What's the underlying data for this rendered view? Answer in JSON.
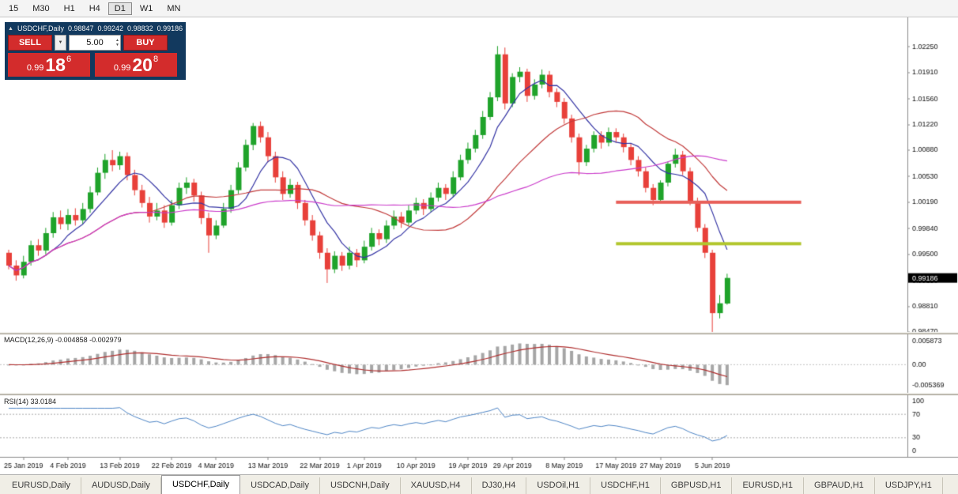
{
  "toolbar": {
    "timeframes": [
      {
        "label": "15",
        "active": false
      },
      {
        "label": "M30",
        "active": false
      },
      {
        "label": "H1",
        "active": false
      },
      {
        "label": "H4",
        "active": false
      },
      {
        "label": "D1",
        "active": true
      },
      {
        "label": "W1",
        "active": false
      },
      {
        "label": "MN",
        "active": false
      }
    ]
  },
  "trade_panel": {
    "header": {
      "symbol": "USDCHF,Daily",
      "open": "0.98847",
      "high": "0.99242",
      "low": "0.98832",
      "close": "0.99186"
    },
    "sell_label": "SELL",
    "buy_label": "BUY",
    "lot_value": "5.00",
    "sell_price": {
      "prefix": "0.99",
      "big": "18",
      "sup": "6"
    },
    "buy_price": {
      "prefix": "0.99",
      "big": "20",
      "sup": "8"
    }
  },
  "indicators": {
    "macd_label": "MACD(12,26,9)",
    "macd_values": "-0.004858 -0.002979",
    "rsi_label": "RSI(14)",
    "rsi_value": "33.0184"
  },
  "chart_data": {
    "type": "candlestick",
    "symbol": "USDCHF",
    "period": "Daily",
    "last_price_label": "0.99186",
    "last_price_value": 0.99186,
    "colors": {
      "up": "#1fa32a",
      "down": "#e8403a",
      "ma_fast": "#3535a5",
      "ma_mid": "#c23b3b",
      "ma_slow": "#cb3ccb",
      "macd_hist": "#a6a6a6",
      "macd_signal": "#b03030",
      "rsi_line": "#4f86c6",
      "resistance": "#e8605a",
      "support": "#b2c62e",
      "badge_bg": "#000000"
    },
    "moving_averages": [
      {
        "period": 7,
        "color": "#3535a5"
      },
      {
        "period": 20,
        "color": "#c23b3b"
      },
      {
        "period": 45,
        "color": "#cb3ccb"
      }
    ],
    "hlines": [
      {
        "name": "resistance-line",
        "value": 1.0019,
        "color": "#e8605a",
        "from_index": 82,
        "to_index": 107
      },
      {
        "name": "support-line",
        "value": 0.9964,
        "color": "#b2c62e",
        "from_index": 82,
        "to_index": 107
      }
    ],
    "price_axis_ticks": [
      {
        "label": "1.02250",
        "value": 1.0225
      },
      {
        "label": "1.01910",
        "value": 1.0191
      },
      {
        "label": "1.01560",
        "value": 1.0156
      },
      {
        "label": "1.01220",
        "value": 1.0122
      },
      {
        "label": "1.00880",
        "value": 1.0088
      },
      {
        "label": "1.00530",
        "value": 1.0053
      },
      {
        "label": "1.00190",
        "value": 1.0019
      },
      {
        "label": "0.99840",
        "value": 0.9984
      },
      {
        "label": "0.99500",
        "value": 0.995
      },
      {
        "label": "0.99150",
        "value": 0.9915
      },
      {
        "label": "0.98810",
        "value": 0.9881
      },
      {
        "label": "0.98470",
        "value": 0.9847
      }
    ],
    "macd_axis_ticks": [
      {
        "label": "0.005873",
        "value": 0.005873
      },
      {
        "label": "0.00",
        "value": 0
      },
      {
        "label": "-0.005369",
        "value": -0.005369
      }
    ],
    "macd_params": [
      12,
      26,
      9
    ],
    "rsi_period": 14,
    "rsi_levels": [
      70,
      30
    ],
    "rsi_axis_ticks": [
      {
        "label": "100",
        "value": 100
      },
      {
        "label": "70",
        "value": 70
      },
      {
        "label": "30",
        "value": 30
      },
      {
        "label": "0",
        "value": 0
      }
    ],
    "x_ticks": [
      {
        "label": "25 Jan 2019",
        "index": 2
      },
      {
        "label": "4 Feb 2019",
        "index": 8
      },
      {
        "label": "13 Feb 2019",
        "index": 15
      },
      {
        "label": "22 Feb 2019",
        "index": 22
      },
      {
        "label": "4 Mar 2019",
        "index": 28
      },
      {
        "label": "13 Mar 2019",
        "index": 35
      },
      {
        "label": "22 Mar 2019",
        "index": 42
      },
      {
        "label": "1 Apr 2019",
        "index": 48
      },
      {
        "label": "10 Apr 2019",
        "index": 55
      },
      {
        "label": "19 Apr 2019",
        "index": 62
      },
      {
        "label": "29 Apr 2019",
        "index": 68
      },
      {
        "label": "8 May 2019",
        "index": 75
      },
      {
        "label": "17 May 2019",
        "index": 82
      },
      {
        "label": "27 May 2019",
        "index": 88
      },
      {
        "label": "5 Jun 2019",
        "index": 95
      }
    ],
    "candles": [
      [
        0.9952,
        0.9956,
        0.993,
        0.9935
      ],
      [
        0.9935,
        0.9942,
        0.9915,
        0.9922
      ],
      [
        0.9922,
        0.9948,
        0.9918,
        0.994
      ],
      [
        0.994,
        0.9968,
        0.9935,
        0.9962
      ],
      [
        0.9962,
        0.997,
        0.9948,
        0.9955
      ],
      [
        0.9955,
        0.9985,
        0.995,
        0.9978
      ],
      [
        0.9978,
        1.0006,
        0.9972,
        0.9999
      ],
      [
        0.9999,
        1.0008,
        0.9983,
        0.999
      ],
      [
        0.999,
        1.001,
        0.9982,
        1.0002
      ],
      [
        1.0002,
        1.0011,
        0.9988,
        0.9995
      ],
      [
        0.9995,
        1.0018,
        0.999,
        1.001
      ],
      [
        1.001,
        1.004,
        1.0005,
        1.0032
      ],
      [
        1.0032,
        1.0065,
        1.0028,
        1.0058
      ],
      [
        1.0058,
        1.0083,
        1.005,
        1.0075
      ],
      [
        1.0075,
        1.0088,
        1.006,
        1.0068
      ],
      [
        1.0068,
        1.0086,
        1.0062,
        1.008
      ],
      [
        1.008,
        1.0085,
        1.0048,
        1.0055
      ],
      [
        1.0055,
        1.0062,
        1.0028,
        1.0035
      ],
      [
        1.0035,
        1.0042,
        1.0012,
        1.0018
      ],
      [
        1.0018,
        1.0026,
        0.9992,
        1.0
      ],
      [
        1.0,
        1.0018,
        0.9995,
        1.0008
      ],
      [
        1.0008,
        1.0015,
        0.9985,
        0.9992
      ],
      [
        0.9992,
        1.0022,
        0.9988,
        1.0015
      ],
      [
        1.0015,
        1.0045,
        1.001,
        1.0038
      ],
      [
        1.0038,
        1.0052,
        1.003,
        1.0045
      ],
      [
        1.0045,
        1.005,
        1.002,
        1.0028
      ],
      [
        1.0028,
        1.0033,
        0.999,
        0.9998
      ],
      [
        0.9998,
        1.0005,
        0.9952,
        0.9975
      ],
      [
        0.9975,
        0.9995,
        0.997,
        0.9988
      ],
      [
        0.9988,
        1.0018,
        0.9985,
        1.001
      ],
      [
        1.001,
        1.0042,
        1.0005,
        1.0035
      ],
      [
        1.0035,
        1.0072,
        1.003,
        1.0065
      ],
      [
        1.0065,
        1.0102,
        1.006,
        1.0095
      ],
      [
        1.0095,
        1.0124,
        1.0088,
        1.012
      ],
      [
        1.012,
        1.0126,
        1.0098,
        1.0105
      ],
      [
        1.0105,
        1.0112,
        1.0072,
        1.008
      ],
      [
        1.008,
        1.0086,
        1.0045,
        1.0052
      ],
      [
        1.0052,
        1.006,
        1.0022,
        1.003
      ],
      [
        1.003,
        1.005,
        1.0025,
        1.0042
      ],
      [
        1.0042,
        1.0046,
        1.001,
        1.0018
      ],
      [
        1.0018,
        1.0022,
        0.9988,
        0.9995
      ],
      [
        0.9995,
        1.0002,
        0.9968,
        0.9975
      ],
      [
        0.9975,
        0.998,
        0.9944,
        0.9952
      ],
      [
        0.9952,
        0.9958,
        0.9912,
        0.993
      ],
      [
        0.993,
        0.9954,
        0.9925,
        0.9948
      ],
      [
        0.9948,
        0.9953,
        0.9928,
        0.9935
      ],
      [
        0.9935,
        0.996,
        0.993,
        0.9952
      ],
      [
        0.9952,
        0.9957,
        0.9933,
        0.9942
      ],
      [
        0.9942,
        0.9968,
        0.9938,
        0.996
      ],
      [
        0.996,
        0.9985,
        0.9955,
        0.9978
      ],
      [
        0.9978,
        0.9983,
        0.9962,
        0.997
      ],
      [
        0.997,
        0.9995,
        0.9965,
        0.9988
      ],
      [
        0.9988,
        1.0008,
        0.9983,
        1.0
      ],
      [
        1.0,
        1.0006,
        0.9985,
        0.9992
      ],
      [
        0.9992,
        1.0015,
        0.9988,
        1.0008
      ],
      [
        1.0008,
        1.0025,
        1.0003,
        1.0018
      ],
      [
        1.0018,
        1.0023,
        1.0002,
        1.001
      ],
      [
        1.001,
        1.0032,
        1.0006,
        1.0025
      ],
      [
        1.0025,
        1.0045,
        1.002,
        1.0038
      ],
      [
        1.0038,
        1.0043,
        1.0022,
        1.003
      ],
      [
        1.003,
        1.006,
        1.0026,
        1.0052
      ],
      [
        1.0052,
        1.0082,
        1.0048,
        1.0075
      ],
      [
        1.0075,
        1.0098,
        1.007,
        1.009
      ],
      [
        1.009,
        1.0115,
        1.0085,
        1.0108
      ],
      [
        1.0108,
        1.014,
        1.0103,
        1.0132
      ],
      [
        1.0132,
        1.0165,
        1.0128,
        1.0158
      ],
      [
        1.0158,
        1.0226,
        1.0153,
        1.0215
      ],
      [
        1.0215,
        1.0224,
        1.0142,
        1.015
      ],
      [
        1.015,
        1.019,
        1.0145,
        1.0185
      ],
      [
        1.0185,
        1.0198,
        1.0178,
        1.0192
      ],
      [
        1.0192,
        1.0196,
        1.0152,
        1.016
      ],
      [
        1.016,
        1.0182,
        1.0155,
        1.0175
      ],
      [
        1.0175,
        1.0195,
        1.017,
        1.0188
      ],
      [
        1.0188,
        1.0193,
        1.0158,
        1.0165
      ],
      [
        1.0165,
        1.017,
        1.0145,
        1.0152
      ],
      [
        1.0152,
        1.0157,
        1.0123,
        1.013
      ],
      [
        1.013,
        1.0135,
        1.0098,
        1.0105
      ],
      [
        1.0105,
        1.011,
        1.0055,
        1.0072
      ],
      [
        1.0072,
        1.0095,
        1.0067,
        1.009
      ],
      [
        1.009,
        1.0113,
        1.0085,
        1.0108
      ],
      [
        1.0108,
        1.0113,
        1.009,
        1.0098
      ],
      [
        1.0098,
        1.0118,
        1.0093,
        1.0112
      ],
      [
        1.0112,
        1.0117,
        1.0098,
        1.0105
      ],
      [
        1.0105,
        1.011,
        1.0085,
        1.0092
      ],
      [
        1.0092,
        1.0097,
        1.0068,
        1.0075
      ],
      [
        1.0075,
        1.008,
        1.0053,
        1.006
      ],
      [
        1.006,
        1.0065,
        1.0032,
        1.0038
      ],
      [
        1.0038,
        1.0043,
        1.0015,
        1.0022
      ],
      [
        1.0022,
        1.0048,
        1.0018,
        1.0045
      ],
      [
        1.0045,
        1.0073,
        1.004,
        1.007
      ],
      [
        1.007,
        1.009,
        1.0065,
        1.0082
      ],
      [
        1.0082,
        1.0087,
        1.0055,
        1.006
      ],
      [
        1.006,
        1.0065,
        1.0015,
        1.002
      ],
      [
        1.002,
        1.0025,
        0.998,
        0.9985
      ],
      [
        0.9985,
        0.999,
        0.9945,
        0.9952
      ],
      [
        0.9952,
        0.9956,
        0.9847,
        0.9872
      ],
      [
        0.9872,
        0.9896,
        0.9865,
        0.9885
      ],
      [
        0.98847,
        0.99242,
        0.98832,
        0.99186
      ]
    ]
  },
  "tab_bar": {
    "tabs": [
      {
        "label": "EURUSD,Daily",
        "active": false
      },
      {
        "label": "AUDUSD,Daily",
        "active": false
      },
      {
        "label": "USDCHF,Daily",
        "active": true
      },
      {
        "label": "USDCAD,Daily",
        "active": false
      },
      {
        "label": "USDCNH,Daily",
        "active": false
      },
      {
        "label": "XAUUSD,H4",
        "active": false
      },
      {
        "label": "DJ30,H4",
        "active": false
      },
      {
        "label": "USDOil,H1",
        "active": false
      },
      {
        "label": "USDCHF,H1",
        "active": false
      },
      {
        "label": "GBPUSD,H1",
        "active": false
      },
      {
        "label": "EURUSD,H1",
        "active": false
      },
      {
        "label": "GBPAUD,H1",
        "active": false
      },
      {
        "label": "USDJPY,H1",
        "active": false
      }
    ]
  }
}
